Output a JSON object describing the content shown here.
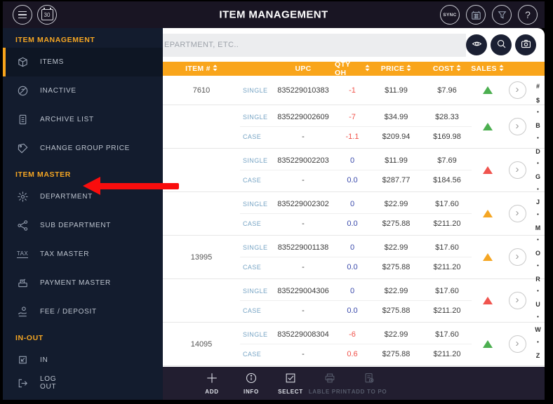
{
  "header": {
    "title": "ITEM MANAGEMENT",
    "calendar_day": "30",
    "sync_label": "SYNC",
    "help_label": "?"
  },
  "sidebar": {
    "sections": [
      {
        "label": "ITEM MANAGEMENT",
        "items": [
          {
            "label": "ITEMS",
            "icon": "cube-icon",
            "active": true
          },
          {
            "label": "INACTIVE",
            "icon": "inactive-icon",
            "active": false
          },
          {
            "label": "ARCHIVE LIST",
            "icon": "archive-icon",
            "active": false
          },
          {
            "label": "CHANGE GROUP PRICE",
            "icon": "tag-icon",
            "active": false
          }
        ]
      },
      {
        "label": "ITEM MASTER",
        "items": [
          {
            "label": "DEPARTMENT",
            "icon": "department-icon",
            "active": false
          },
          {
            "label": "SUB DEPARTMENT",
            "icon": "sub-department-icon",
            "active": false
          },
          {
            "label": "TAX MASTER",
            "icon": "tax-icon",
            "active": false
          },
          {
            "label": "PAYMENT MASTER",
            "icon": "payment-icon",
            "active": false
          },
          {
            "label": "FEE / DEPOSIT",
            "icon": "fee-deposit-icon",
            "active": false
          }
        ]
      },
      {
        "label": "IN-OUT",
        "items": [
          {
            "label": "IN",
            "icon": "in-icon",
            "active": false
          }
        ]
      }
    ],
    "logout_label": "LOG OUT"
  },
  "search": {
    "placeholder": "EPARTMENT, ETC.."
  },
  "table": {
    "columns": [
      {
        "label": "ITEM #",
        "sortable": true
      },
      {
        "label": "UPC",
        "sortable": false
      },
      {
        "label": "QTY OH",
        "sortable": true
      },
      {
        "label": "PRICE",
        "sortable": true
      },
      {
        "label": "COST",
        "sortable": true
      },
      {
        "label": "SALES",
        "sortable": true
      }
    ],
    "rows": [
      {
        "item_no": "7610",
        "trend": "green",
        "lines": [
          {
            "unit": "SINGLE",
            "upc": "835229010383",
            "qty": "-1",
            "qty_color": "negative",
            "price": "$11.99",
            "cost": "$7.96"
          }
        ]
      },
      {
        "item_no": "",
        "trend": "green",
        "lines": [
          {
            "unit": "SINGLE",
            "upc": "835229002609",
            "qty": "-7",
            "qty_color": "negative",
            "price": "$34.99",
            "cost": "$28.33"
          },
          {
            "unit": "CASE",
            "upc": "-",
            "qty": "-1.1",
            "qty_color": "negative",
            "price": "$209.94",
            "cost": "$169.98"
          }
        ]
      },
      {
        "item_no": "",
        "trend": "red",
        "lines": [
          {
            "unit": "SINGLE",
            "upc": "835229002203",
            "qty": "0",
            "qty_color": "neutral",
            "price": "$11.99",
            "cost": "$7.69"
          },
          {
            "unit": "CASE",
            "upc": "-",
            "qty": "0.0",
            "qty_color": "neutral",
            "price": "$287.77",
            "cost": "$184.56"
          }
        ]
      },
      {
        "item_no": "",
        "trend": "orange",
        "lines": [
          {
            "unit": "SINGLE",
            "upc": "835229002302",
            "qty": "0",
            "qty_color": "neutral",
            "price": "$22.99",
            "cost": "$17.60"
          },
          {
            "unit": "CASE",
            "upc": "-",
            "qty": "0.0",
            "qty_color": "neutral",
            "price": "$275.88",
            "cost": "$211.20"
          }
        ]
      },
      {
        "item_no": "13995",
        "trend": "orange",
        "lines": [
          {
            "unit": "SINGLE",
            "upc": "835229001138",
            "qty": "0",
            "qty_color": "neutral",
            "price": "$22.99",
            "cost": "$17.60"
          },
          {
            "unit": "CASE",
            "upc": "-",
            "qty": "0.0",
            "qty_color": "neutral",
            "price": "$275.88",
            "cost": "$211.20"
          }
        ]
      },
      {
        "item_no": "",
        "trend": "red",
        "lines": [
          {
            "unit": "SINGLE",
            "upc": "835229004306",
            "qty": "0",
            "qty_color": "neutral",
            "price": "$22.99",
            "cost": "$17.60"
          },
          {
            "unit": "CASE",
            "upc": "-",
            "qty": "0.0",
            "qty_color": "neutral",
            "price": "$275.88",
            "cost": "$211.20"
          }
        ]
      },
      {
        "item_no": "14095",
        "trend": "green",
        "lines": [
          {
            "unit": "SINGLE",
            "upc": "835229008304",
            "qty": "-6",
            "qty_color": "negative",
            "price": "$22.99",
            "cost": "$17.60"
          },
          {
            "unit": "CASE",
            "upc": "-",
            "qty": "0.6",
            "qty_color": "negative",
            "price": "$275.88",
            "cost": "$211.20"
          }
        ]
      }
    ]
  },
  "alphabet_index": [
    "#",
    "$",
    "•",
    "B",
    "•",
    "D",
    "•",
    "G",
    "•",
    "J",
    "•",
    "M",
    "•",
    "O",
    "•",
    "R",
    "•",
    "U",
    "•",
    "W",
    "•",
    "Z"
  ],
  "toolbar": {
    "items": [
      {
        "label": "ADD",
        "icon": "add-icon",
        "enabled": true
      },
      {
        "label": "INFO",
        "icon": "info-icon",
        "enabled": true
      },
      {
        "label": "SELECT",
        "icon": "select-icon",
        "enabled": true
      },
      {
        "label": "LABLE PRINT",
        "icon": "printer-icon",
        "enabled": false
      },
      {
        "label": "ADD TO PO",
        "icon": "add-to-po-icon",
        "enabled": false
      }
    ]
  },
  "annotation": {
    "type": "arrow",
    "points_at": "DEPARTMENT",
    "color": "#F90D0D"
  },
  "colors": {
    "accent_orange": "#F9A51B",
    "section_orange": "#F5A623",
    "unit_link_blue": "#78A5C5",
    "negative": "#F05149",
    "neutral": "#3949AB",
    "trend_green": "#4CAF50",
    "trend_red": "#F0544E",
    "trend_orange": "#F5A623"
  }
}
